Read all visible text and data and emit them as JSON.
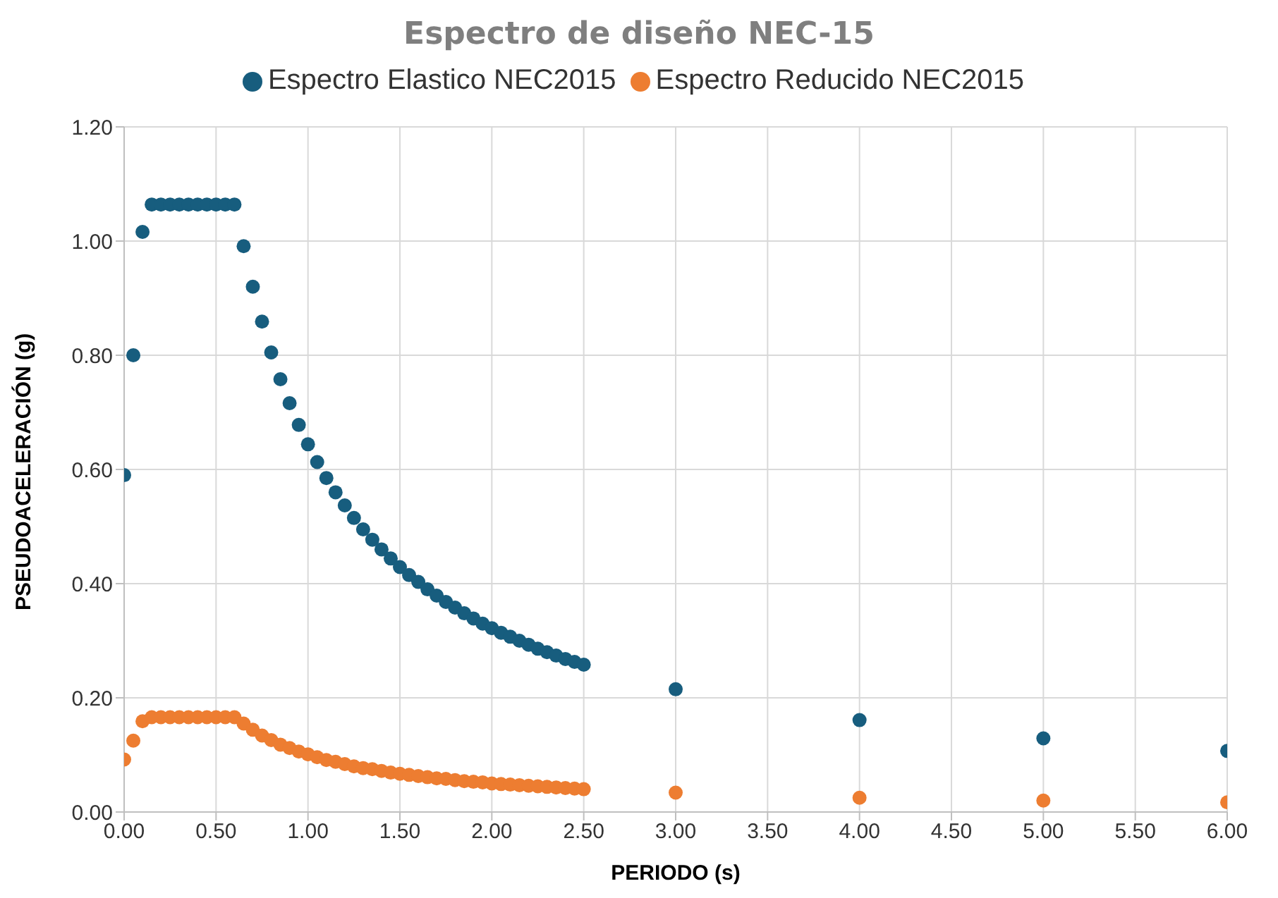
{
  "chart_data": {
    "type": "scatter",
    "title": "Espectro de diseño NEC-15",
    "xlabel": "PERIODO (s)",
    "ylabel": "PSEUDOACELERACIÓN (g)",
    "x": [
      0,
      0.05,
      0.1,
      0.15,
      0.2,
      0.25,
      0.3,
      0.35,
      0.4,
      0.45,
      0.5,
      0.55,
      0.6,
      0.65,
      0.7,
      0.75,
      0.8,
      0.85,
      0.9,
      0.95,
      1.0,
      1.05,
      1.1,
      1.15,
      1.2,
      1.25,
      1.3,
      1.35,
      1.4,
      1.45,
      1.5,
      1.55,
      1.6,
      1.65,
      1.7,
      1.75,
      1.8,
      1.85,
      1.9,
      1.95,
      2.0,
      2.05,
      2.1,
      2.15,
      2.2,
      2.25,
      2.3,
      2.35,
      2.4,
      2.45,
      2.5,
      3,
      4,
      5,
      6
    ],
    "series": [
      {
        "name": "Espectro Elastico NEC2015",
        "color": "#175d7e",
        "values": [
          0.59,
          0.8,
          1.016,
          1.064,
          1.064,
          1.064,
          1.064,
          1.064,
          1.064,
          1.064,
          1.064,
          1.064,
          1.064,
          0.991,
          0.92,
          0.859,
          0.805,
          0.758,
          0.716,
          0.678,
          0.644,
          0.613,
          0.585,
          0.56,
          0.537,
          0.515,
          0.495,
          0.477,
          0.46,
          0.444,
          0.429,
          0.415,
          0.403,
          0.39,
          0.379,
          0.368,
          0.358,
          0.348,
          0.339,
          0.33,
          0.322,
          0.314,
          0.307,
          0.3,
          0.293,
          0.286,
          0.28,
          0.274,
          0.268,
          0.263,
          0.258,
          0.215,
          0.161,
          0.129,
          0.107
        ]
      },
      {
        "name": "Espectro Reducido NEC2015",
        "color": "#ed7d31",
        "values": [
          0.092,
          0.125,
          0.159,
          0.166,
          0.166,
          0.166,
          0.166,
          0.166,
          0.166,
          0.166,
          0.166,
          0.166,
          0.166,
          0.155,
          0.144,
          0.134,
          0.126,
          0.118,
          0.112,
          0.106,
          0.101,
          0.096,
          0.091,
          0.088,
          0.084,
          0.08,
          0.077,
          0.075,
          0.072,
          0.069,
          0.067,
          0.065,
          0.063,
          0.061,
          0.059,
          0.058,
          0.056,
          0.054,
          0.053,
          0.052,
          0.05,
          0.049,
          0.048,
          0.047,
          0.046,
          0.045,
          0.044,
          0.043,
          0.042,
          0.041,
          0.04,
          0.034,
          0.025,
          0.02,
          0.017
        ]
      }
    ],
    "xlim": [
      0,
      6
    ],
    "xticks": [
      {
        "value": 0,
        "label": "0.00"
      },
      {
        "value": 0.5,
        "label": "0.50"
      },
      {
        "value": 1,
        "label": "1.00"
      },
      {
        "value": 1.5,
        "label": "1.50"
      },
      {
        "value": 2,
        "label": "2.00"
      },
      {
        "value": 2.5,
        "label": "2.50"
      },
      {
        "value": 3,
        "label": "3.00"
      },
      {
        "value": 3.5,
        "label": "3.50"
      },
      {
        "value": 4,
        "label": "4.00"
      },
      {
        "value": 4.5,
        "label": "4.50"
      },
      {
        "value": 5,
        "label": "5.00"
      },
      {
        "value": 5.5,
        "label": "5.50"
      },
      {
        "value": 6,
        "label": "6.00"
      }
    ],
    "ylim": [
      0,
      1.2
    ],
    "yticks": [
      {
        "value": 0,
        "label": "0.00"
      },
      {
        "value": 0.2,
        "label": "0.20"
      },
      {
        "value": 0.4,
        "label": "0.40"
      },
      {
        "value": 0.6,
        "label": "0.60"
      },
      {
        "value": 0.8,
        "label": "0.80"
      },
      {
        "value": 1.0,
        "label": "1.00"
      },
      {
        "value": 1.2,
        "label": "1.20"
      }
    ],
    "grid": true,
    "legend": "top",
    "marker": "circle"
  }
}
